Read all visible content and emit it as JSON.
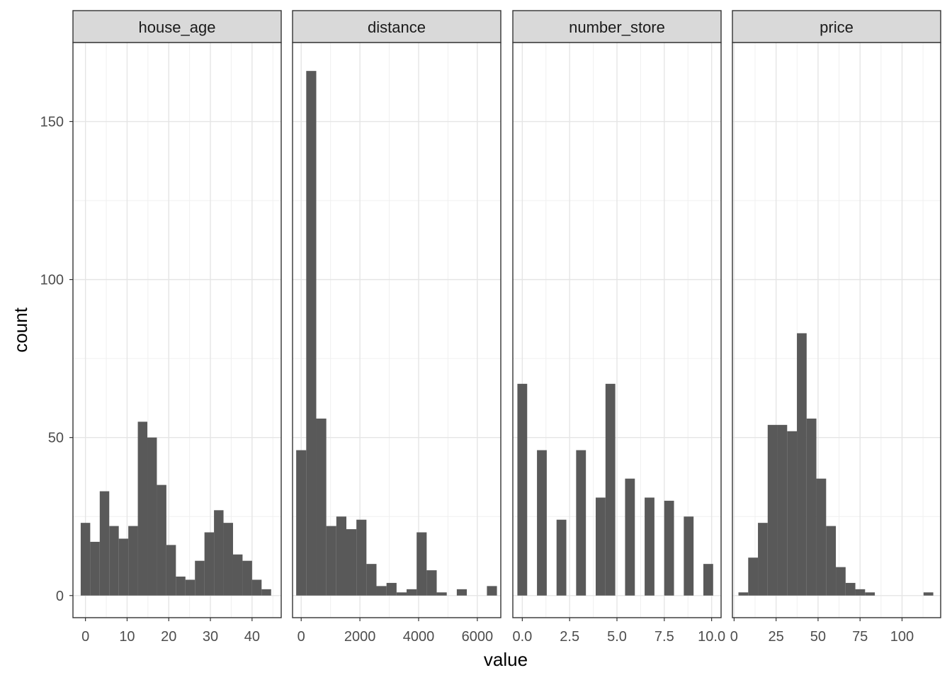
{
  "chart_data": {
    "type": "bar",
    "xlabel": "value",
    "ylabel": "count",
    "ylim": [
      -7,
      175
    ],
    "y_ticks": [
      0,
      50,
      100,
      150
    ],
    "y_tick_labels": [
      "0",
      "50",
      "100",
      "150"
    ],
    "grid": true,
    "bar_color": "#595959",
    "strip_color": "#d9d9d9",
    "facets": [
      {
        "name": "house_age",
        "xlim": [
          -3,
          47
        ],
        "x_ticks": [
          0,
          10,
          20,
          30,
          40
        ],
        "x_tick_labels": [
          "0",
          "10",
          "20",
          "30",
          "40"
        ],
        "bin_width": 2.286,
        "bin_start": -1.143,
        "values": [
          23,
          17,
          33,
          22,
          18,
          22,
          55,
          50,
          35,
          16,
          6,
          5,
          11,
          20,
          27,
          23,
          13,
          11,
          5,
          2
        ]
      },
      {
        "name": "distance",
        "xlim": [
          -295,
          6800
        ],
        "x_ticks": [
          0,
          2000,
          4000,
          6000
        ],
        "x_tick_labels": [
          "0",
          "2000",
          "4000",
          "6000"
        ],
        "bin_width": 342,
        "bin_start": -171,
        "values": [
          46,
          166,
          56,
          22,
          25,
          21,
          24,
          10,
          3,
          4,
          1,
          2,
          20,
          8,
          1,
          0,
          2,
          0,
          0,
          3
        ]
      },
      {
        "name": "number_store",
        "xlim": [
          -0.5,
          10.5
        ],
        "x_ticks": [
          0,
          2.5,
          5,
          7.5,
          10
        ],
        "x_tick_labels": [
          "0.0",
          "2.5",
          "5.0",
          "7.5",
          "10.0"
        ],
        "bin_width": 0.517,
        "bin_start": -0.259,
        "values": [
          67,
          0,
          46,
          0,
          24,
          0,
          46,
          0,
          31,
          67,
          0,
          37,
          0,
          31,
          0,
          30,
          0,
          25,
          0,
          10
        ]
      },
      {
        "name": "price",
        "xlim": [
          -1,
          123
        ],
        "x_ticks": [
          0,
          25,
          50,
          75,
          100
        ],
        "x_tick_labels": [
          "0",
          "25",
          "50",
          "75",
          "100"
        ],
        "bin_width": 5.8,
        "bin_start": 2.6,
        "values": [
          1,
          12,
          23,
          54,
          54,
          52,
          83,
          56,
          37,
          22,
          9,
          4,
          2,
          1,
          0,
          0,
          0,
          0,
          0,
          1
        ]
      }
    ]
  }
}
